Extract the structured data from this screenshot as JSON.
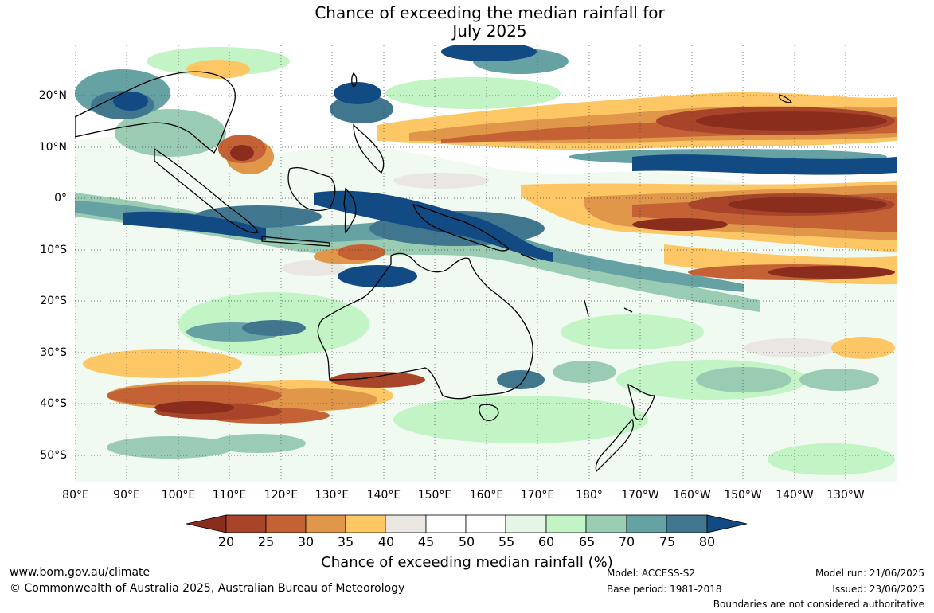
{
  "title": {
    "line1": "Chance of exceeding the median rainfall for",
    "line2": "July 2025"
  },
  "map": {
    "lat_labels": [
      "20°N",
      "10°N",
      "0°",
      "10°S",
      "20°S",
      "30°S",
      "40°S",
      "50°S"
    ],
    "lon_labels": [
      "80°E",
      "90°E",
      "100°E",
      "110°E",
      "120°E",
      "130°E",
      "140°E",
      "150°E",
      "160°E",
      "170°E",
      "180°",
      "170°W",
      "160°W",
      "150°W",
      "140°W",
      "130°W"
    ]
  },
  "colorbar": {
    "title": "Chance of exceeding median rainfall (%)",
    "ticks": [
      "20",
      "25",
      "30",
      "35",
      "40",
      "45",
      "50",
      "55",
      "60",
      "65",
      "70",
      "75",
      "80"
    ],
    "colors": {
      "below_20": "#8b2d1d",
      "20_25": "#a8442a",
      "25_30": "#c46236",
      "30_35": "#e0974a",
      "35_40": "#fdc766",
      "40_45": "#eae7e2",
      "45_50": "#ffffff",
      "50_55": "#ffffff",
      "55_60": "#e6f6e6",
      "60_65": "#c2f4c6",
      "65_70": "#99ccb2",
      "70_75": "#66a1a4",
      "75_80": "#40778f",
      "above_80": "#124a84"
    }
  },
  "footer": {
    "website": "www.bom.gov.au/climate",
    "copyright": "© Commonwealth of Australia 2025, Australian Bureau of Meteorology",
    "model": "Model: ACCESS-S2",
    "base_period": "Base period: 1981-2018",
    "model_run": "Model run: 21/06/2025",
    "issued": "Issued: 23/06/2025",
    "disclaimer": "Boundaries are not considered authoritative"
  }
}
